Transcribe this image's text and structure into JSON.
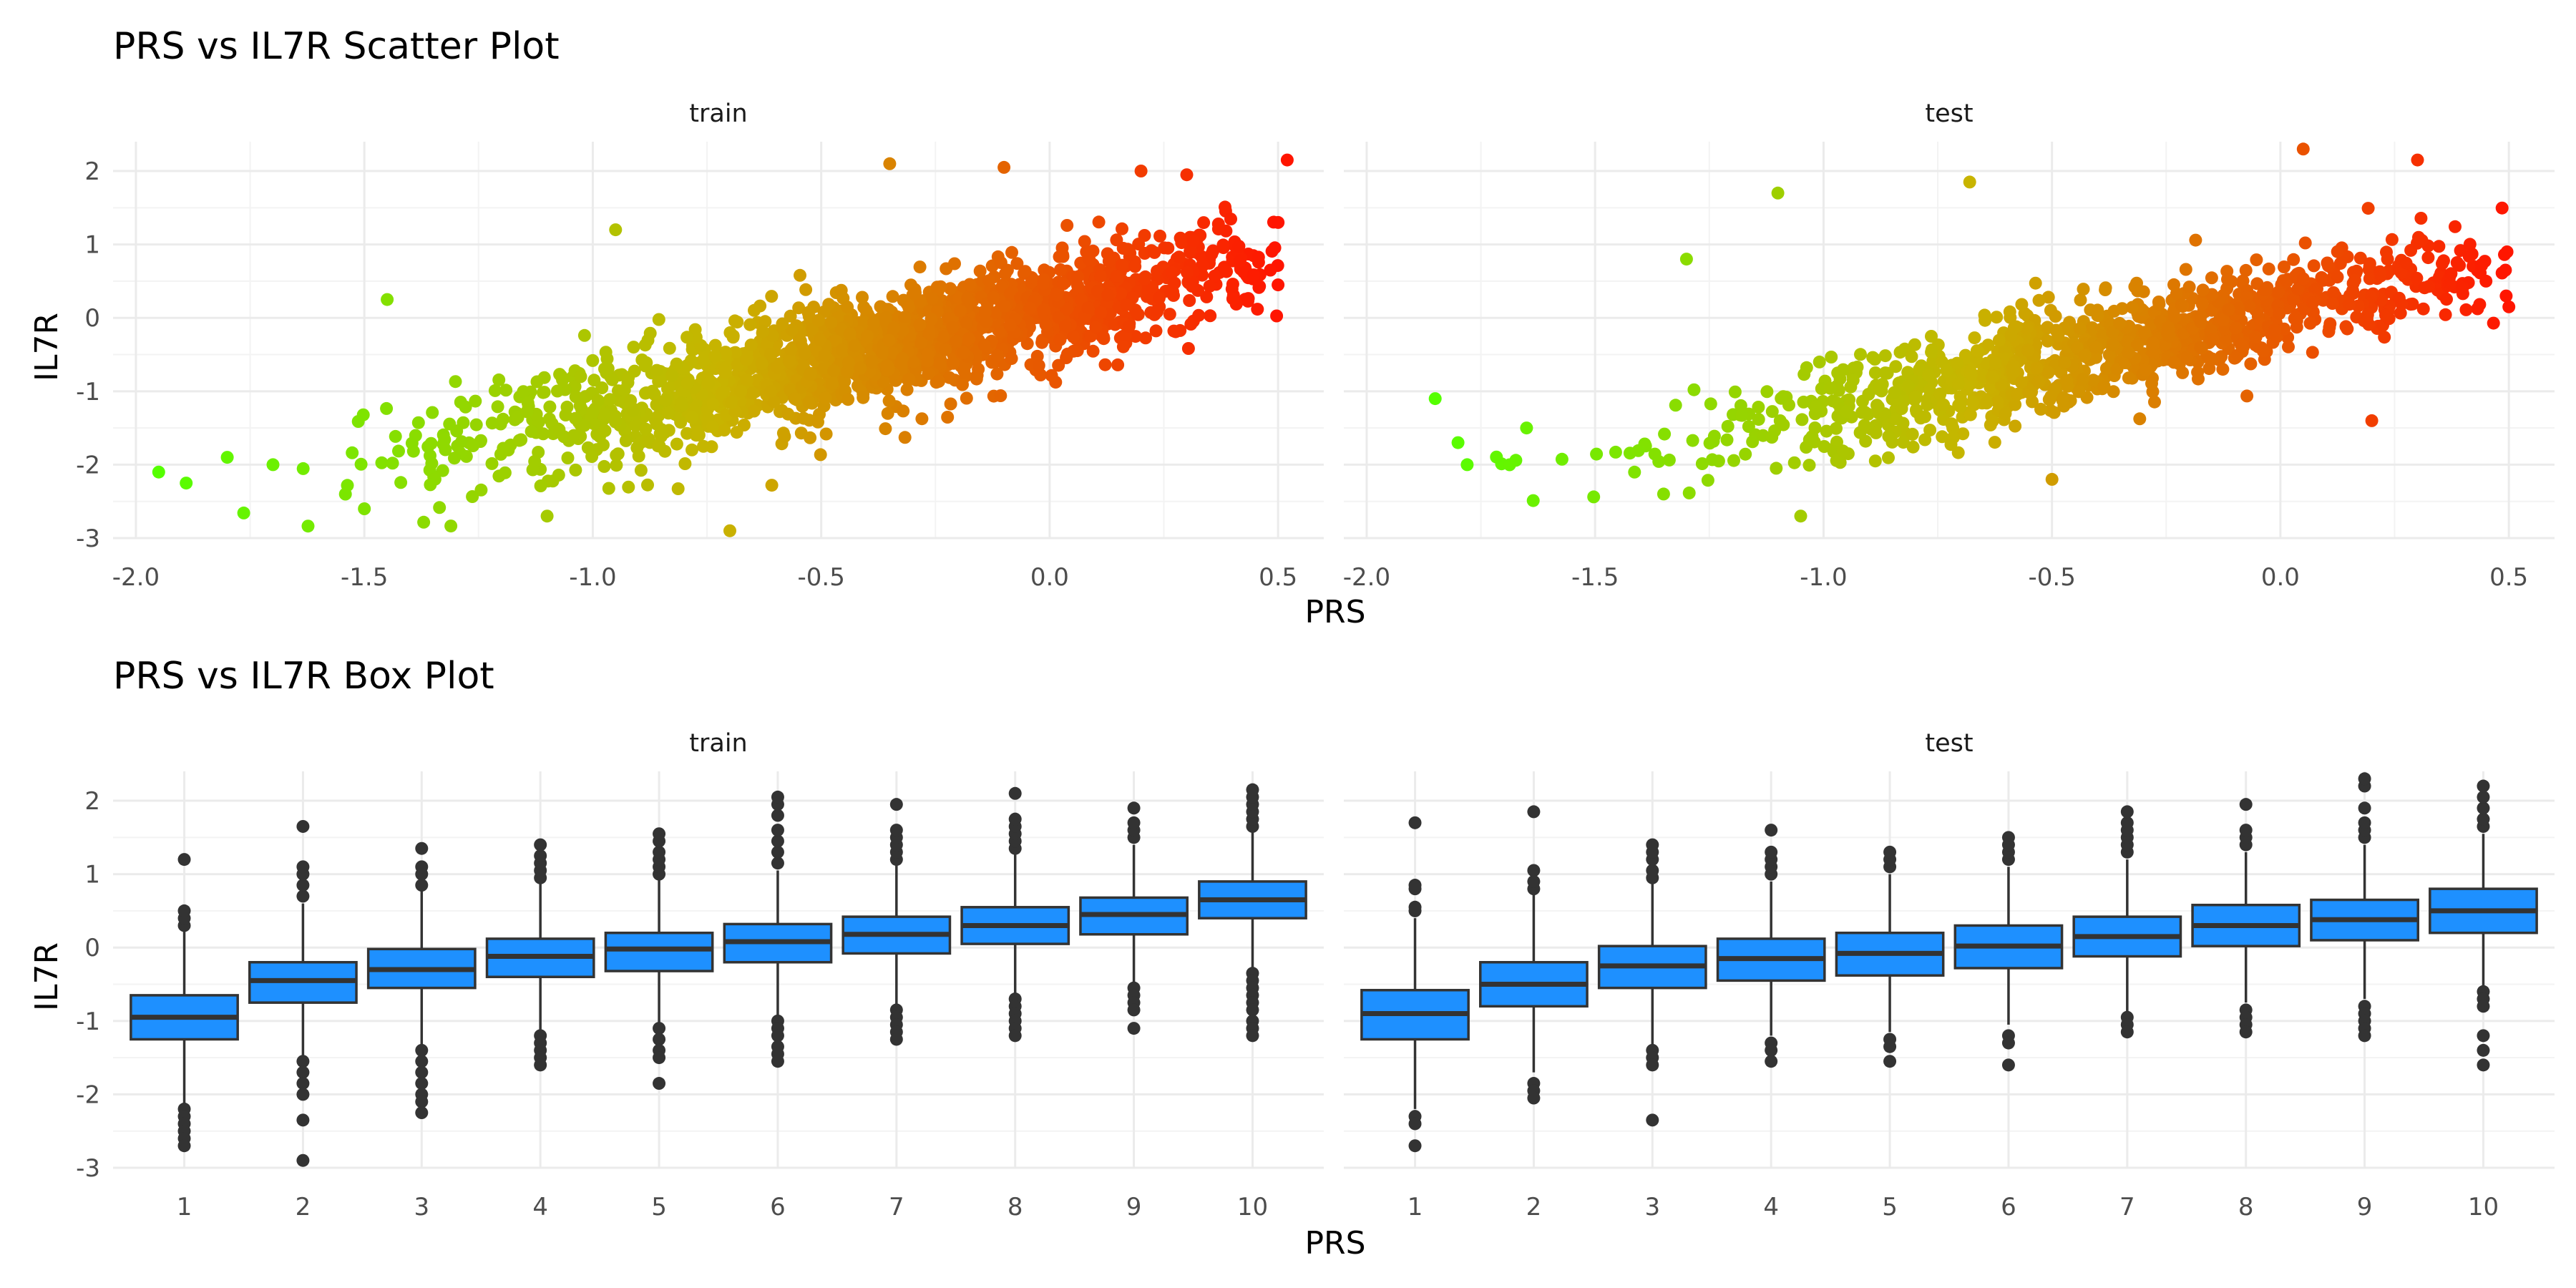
{
  "chart_data": [
    {
      "type": "scatter",
      "title": "PRS vs IL7R Scatter Plot",
      "xlabel": "PRS",
      "ylabel": "IL7R",
      "facets": [
        "train",
        "test"
      ],
      "xlim": [
        -2.05,
        0.6
      ],
      "ylim": [
        -3.0,
        2.4
      ],
      "x_ticks": [
        "-2.0",
        "-1.5",
        "-1.0",
        "-0.5",
        "0.0",
        "0.5"
      ],
      "y_ticks": [
        "-3",
        "-2",
        "-1",
        "0",
        "1",
        "2"
      ],
      "color_scale": {
        "low": "#55ff00",
        "mid": "#c8b400",
        "high": "#ff1500"
      },
      "trend": {
        "slope": 1.4,
        "intercept": 0.1
      },
      "panels": [
        {
          "facet": "train",
          "n": 1800,
          "x_range": [
            -1.95,
            0.5
          ],
          "points": [
            [
              -1.95,
              -2.1
            ],
            [
              -1.89,
              -2.25
            ],
            [
              -1.8,
              -1.9
            ],
            [
              -1.7,
              -2.0
            ],
            [
              -1.5,
              -2.6
            ],
            [
              -1.1,
              -2.7
            ],
            [
              -0.7,
              -2.9
            ],
            [
              -0.35,
              2.1
            ],
            [
              -0.1,
              2.05
            ],
            [
              0.2,
              2.0
            ],
            [
              0.52,
              2.15
            ],
            [
              0.5,
              1.3
            ],
            [
              0.3,
              1.95
            ],
            [
              -0.95,
              1.2
            ],
            [
              -1.45,
              0.25
            ]
          ]
        },
        {
          "facet": "test",
          "n": 1100,
          "x_range": [
            -1.85,
            0.5
          ],
          "points": [
            [
              -1.85,
              -1.1
            ],
            [
              -1.8,
              -1.7
            ],
            [
              -1.78,
              -2.0
            ],
            [
              -1.65,
              -1.5
            ],
            [
              -1.35,
              -2.4
            ],
            [
              -1.05,
              -2.7
            ],
            [
              -1.1,
              1.7
            ],
            [
              -0.68,
              1.85
            ],
            [
              0.05,
              2.3
            ],
            [
              0.3,
              2.15
            ],
            [
              0.5,
              0.15
            ],
            [
              0.45,
              0.5
            ],
            [
              0.2,
              -1.4
            ],
            [
              -0.5,
              -2.2
            ],
            [
              -1.3,
              0.8
            ]
          ]
        }
      ]
    },
    {
      "type": "box",
      "title": "PRS vs IL7R Box Plot",
      "xlabel": "PRS",
      "ylabel": "IL7R",
      "facets": [
        "train",
        "test"
      ],
      "categories": [
        "1",
        "2",
        "3",
        "4",
        "5",
        "6",
        "7",
        "8",
        "9",
        "10"
      ],
      "ylim": [
        -3.0,
        2.4
      ],
      "y_ticks": [
        "-3",
        "-2",
        "-1",
        "0",
        "1",
        "2"
      ],
      "box_fill": "#1e90ff",
      "panels": [
        {
          "facet": "train",
          "boxes": [
            {
              "q1": -1.25,
              "median": -0.95,
              "q3": -0.65,
              "whisker_low": -2.15,
              "whisker_high": 0.25,
              "outliers": [
                -2.2,
                -2.3,
                -2.4,
                -2.5,
                -2.6,
                -2.7,
                0.3,
                0.4,
                0.5,
                1.2
              ]
            },
            {
              "q1": -0.75,
              "median": -0.45,
              "q3": -0.2,
              "whisker_low": -1.5,
              "whisker_high": 0.6,
              "outliers": [
                -1.55,
                -1.7,
                -1.85,
                -2.0,
                -2.35,
                -2.9,
                0.7,
                0.85,
                1.0,
                1.1,
                1.65
              ]
            },
            {
              "q1": -0.55,
              "median": -0.3,
              "q3": -0.02,
              "whisker_low": -1.35,
              "whisker_high": 0.8,
              "outliers": [
                -1.4,
                -1.55,
                -1.7,
                -1.85,
                -2.0,
                -2.1,
                -2.25,
                0.85,
                1.0,
                1.1,
                1.35
              ]
            },
            {
              "q1": -0.4,
              "median": -0.12,
              "q3": 0.12,
              "whisker_low": -1.15,
              "whisker_high": 0.9,
              "outliers": [
                -1.2,
                -1.3,
                -1.4,
                -1.5,
                -1.6,
                0.95,
                1.05,
                1.15,
                1.25,
                1.4
              ]
            },
            {
              "q1": -0.32,
              "median": -0.02,
              "q3": 0.2,
              "whisker_low": -1.05,
              "whisker_high": 0.95,
              "outliers": [
                -1.1,
                -1.25,
                -1.4,
                -1.5,
                -1.85,
                1.0,
                1.1,
                1.2,
                1.3,
                1.45,
                1.55
              ]
            },
            {
              "q1": -0.2,
              "median": 0.08,
              "q3": 0.32,
              "whisker_low": -0.95,
              "whisker_high": 1.05,
              "outliers": [
                -1.0,
                -1.1,
                -1.2,
                -1.35,
                -1.45,
                -1.55,
                1.15,
                1.3,
                1.45,
                1.6,
                1.8,
                1.95,
                2.05
              ]
            },
            {
              "q1": -0.08,
              "median": 0.18,
              "q3": 0.42,
              "whisker_low": -0.8,
              "whisker_high": 1.15,
              "outliers": [
                -0.85,
                -0.95,
                -1.05,
                -1.15,
                -1.25,
                1.2,
                1.3,
                1.4,
                1.5,
                1.6,
                1.95
              ]
            },
            {
              "q1": 0.05,
              "median": 0.3,
              "q3": 0.55,
              "whisker_low": -0.65,
              "whisker_high": 1.3,
              "outliers": [
                -0.7,
                -0.8,
                -0.9,
                -1.0,
                -1.1,
                -1.2,
                1.35,
                1.45,
                1.55,
                1.65,
                1.75,
                2.1
              ]
            },
            {
              "q1": 0.18,
              "median": 0.45,
              "q3": 0.68,
              "whisker_low": -0.5,
              "whisker_high": 1.4,
              "outliers": [
                -0.55,
                -0.65,
                -0.75,
                -0.85,
                -1.1,
                1.5,
                1.6,
                1.7,
                1.9
              ]
            },
            {
              "q1": 0.4,
              "median": 0.65,
              "q3": 0.9,
              "whisker_low": -0.3,
              "whisker_high": 1.6,
              "outliers": [
                -0.35,
                -0.45,
                -0.55,
                -0.65,
                -0.75,
                -0.85,
                -1.0,
                -1.1,
                -1.2,
                1.65,
                1.75,
                1.85,
                1.95,
                2.05,
                2.15
              ]
            }
          ]
        },
        {
          "facet": "test",
          "boxes": [
            {
              "q1": -1.25,
              "median": -0.9,
              "q3": -0.58,
              "whisker_low": -2.2,
              "whisker_high": 0.4,
              "outliers": [
                -2.3,
                -2.4,
                -2.7,
                0.5,
                0.55,
                0.8,
                0.85,
                1.7
              ]
            },
            {
              "q1": -0.8,
              "median": -0.5,
              "q3": -0.2,
              "whisker_low": -1.7,
              "whisker_high": 0.75,
              "outliers": [
                -1.85,
                -1.95,
                -2.05,
                0.8,
                0.9,
                1.05,
                1.85
              ]
            },
            {
              "q1": -0.55,
              "median": -0.25,
              "q3": 0.02,
              "whisker_low": -1.35,
              "whisker_high": 0.9,
              "outliers": [
                -1.4,
                -1.5,
                -1.6,
                -2.35,
                0.95,
                1.05,
                1.2,
                1.3,
                1.4
              ]
            },
            {
              "q1": -0.45,
              "median": -0.15,
              "q3": 0.12,
              "whisker_low": -1.2,
              "whisker_high": 0.9,
              "outliers": [
                -1.3,
                -1.4,
                -1.55,
                1.0,
                1.1,
                1.2,
                1.3,
                1.6
              ]
            },
            {
              "q1": -0.38,
              "median": -0.08,
              "q3": 0.2,
              "whisker_low": -1.15,
              "whisker_high": 1.0,
              "outliers": [
                -1.25,
                -1.35,
                -1.55,
                1.1,
                1.2,
                1.3
              ]
            },
            {
              "q1": -0.28,
              "median": 0.02,
              "q3": 0.3,
              "whisker_low": -1.05,
              "whisker_high": 1.1,
              "outliers": [
                -1.2,
                -1.3,
                -1.6,
                1.2,
                1.3,
                1.4,
                1.5
              ]
            },
            {
              "q1": -0.12,
              "median": 0.15,
              "q3": 0.42,
              "whisker_low": -0.9,
              "whisker_high": 1.2,
              "outliers": [
                -0.95,
                -1.05,
                -1.15,
                1.3,
                1.4,
                1.5,
                1.6,
                1.7,
                1.85
              ]
            },
            {
              "q1": 0.02,
              "median": 0.3,
              "q3": 0.58,
              "whisker_low": -0.75,
              "whisker_high": 1.3,
              "outliers": [
                -0.85,
                -0.95,
                -1.05,
                -1.15,
                1.4,
                1.5,
                1.6,
                1.95
              ]
            },
            {
              "q1": 0.1,
              "median": 0.38,
              "q3": 0.65,
              "whisker_low": -0.7,
              "whisker_high": 1.4,
              "outliers": [
                -0.8,
                -0.9,
                -1.0,
                -1.1,
                -1.2,
                1.5,
                1.6,
                1.7,
                1.9,
                2.2,
                2.3
              ]
            },
            {
              "q1": 0.2,
              "median": 0.5,
              "q3": 0.8,
              "whisker_low": -0.55,
              "whisker_high": 1.55,
              "outliers": [
                -0.6,
                -0.7,
                -0.8,
                -1.2,
                -1.4,
                -1.6,
                1.65,
                1.75,
                1.9,
                2.05,
                2.2
              ]
            }
          ]
        }
      ]
    }
  ]
}
